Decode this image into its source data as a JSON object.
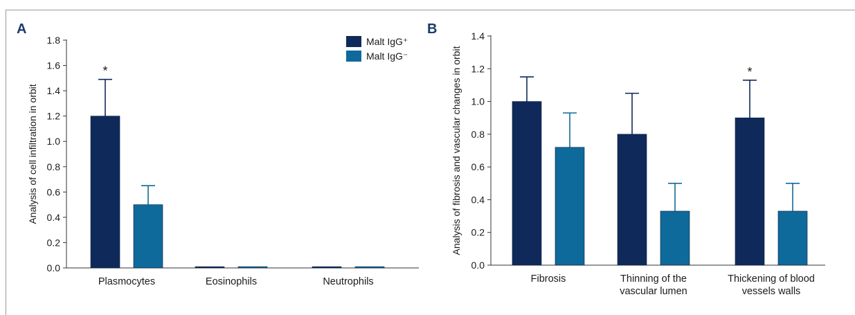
{
  "colors": {
    "series1": "#0f2a5a",
    "series2": "#0e6a9a",
    "axis": "#333333",
    "frame": "#9a9a9a"
  },
  "chart_data": [
    {
      "type": "bar",
      "panel": "A",
      "ylabel": "Analysis of cell infiltration in orbit",
      "xlabel": "",
      "ylim": [
        0,
        1.8
      ],
      "yticks": [
        "0.0",
        "0.2",
        "0.4",
        "0.6",
        "0.8",
        "1.0",
        "1.2",
        "1.4",
        "1.6",
        "1.8"
      ],
      "categories": [
        "Plasmocytes",
        "Eosinophils",
        "Neutrophils"
      ],
      "series": [
        {
          "name": "Malt IgG⁺",
          "values": [
            1.2,
            0.01,
            0.01
          ],
          "errors": [
            0.29,
            0,
            0
          ]
        },
        {
          "name": "Malt IgG⁻",
          "values": [
            0.5,
            0.01,
            0.01
          ],
          "errors": [
            0.15,
            0,
            0
          ]
        }
      ],
      "significance": [
        {
          "category_index": 0,
          "series_index": 0,
          "label": "*"
        }
      ],
      "legend_position": "top-right",
      "grid": false
    },
    {
      "type": "bar",
      "panel": "B",
      "ylabel": "Analysis of fibrosis and vascular changes in orbit",
      "xlabel": "",
      "ylim": [
        0,
        1.4
      ],
      "yticks": [
        "0.0",
        "0.2",
        "0.4",
        "0.6",
        "0.8",
        "1.0",
        "1.2",
        "1.4"
      ],
      "categories": [
        [
          "Fibrosis"
        ],
        [
          "Thinning of the",
          "vascular lumen"
        ],
        [
          "Thickening of blood",
          "vessels walls"
        ]
      ],
      "series": [
        {
          "name": "Malt IgG⁺",
          "values": [
            1.0,
            0.8,
            0.9
          ],
          "errors": [
            0.15,
            0.25,
            0.23
          ]
        },
        {
          "name": "Malt IgG⁻",
          "values": [
            0.72,
            0.33,
            0.33
          ],
          "errors": [
            0.21,
            0.17,
            0.17
          ]
        }
      ],
      "significance": [
        {
          "category_index": 2,
          "series_index": 0,
          "label": "*"
        }
      ],
      "grid": false
    }
  ]
}
